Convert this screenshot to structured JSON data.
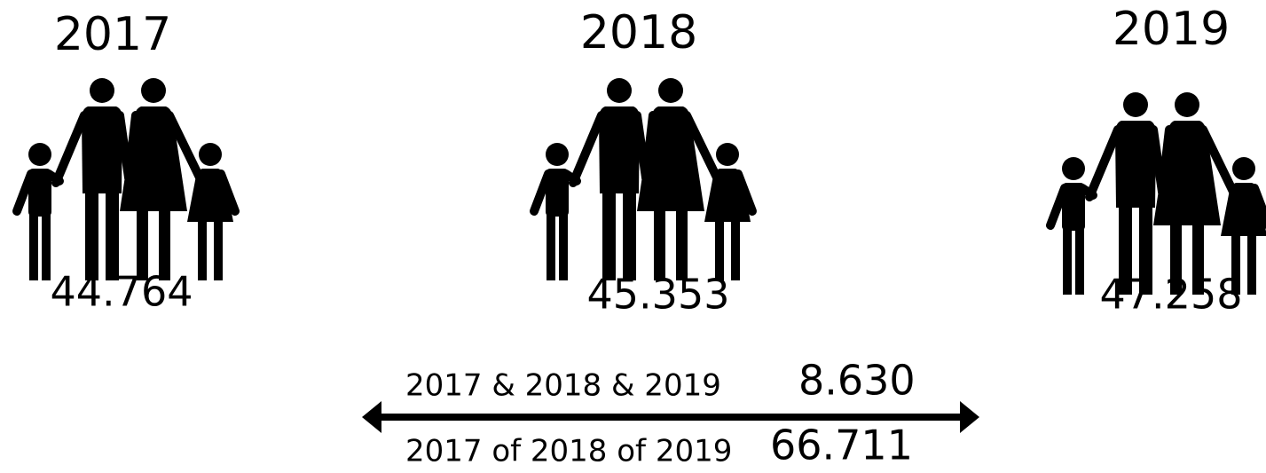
{
  "groups": [
    {
      "year": "2017",
      "value": "44.764"
    },
    {
      "year": "2018",
      "value": "45.353"
    },
    {
      "year": "2019",
      "value": "47.258"
    }
  ],
  "overlap": [
    {
      "label": "2017 & 2018 & 2019",
      "value": "8.630"
    },
    {
      "label": "2017 of 2018 of 2019",
      "value": "66.711"
    }
  ]
}
